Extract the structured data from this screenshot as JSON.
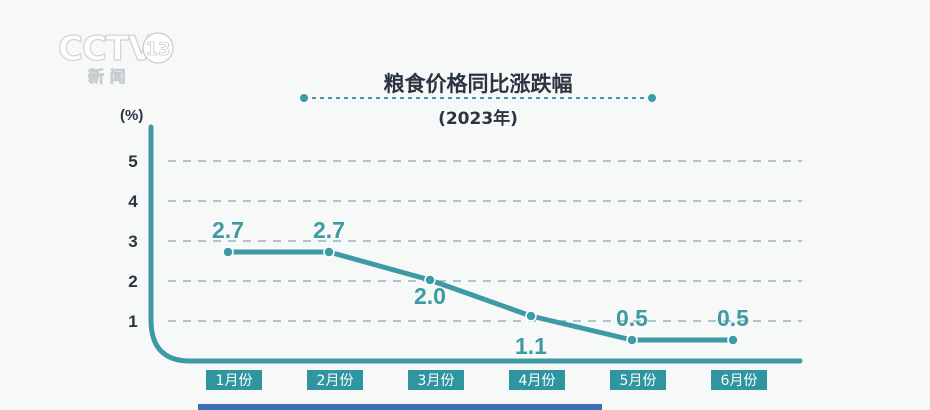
{
  "logo": {
    "main": "CCTV",
    "number": "13",
    "sub": "新 闻"
  },
  "chart_data": {
    "type": "line",
    "title": "粮食价格同比涨跌幅",
    "subtitle": "(2023年)",
    "ylabel": "(%)",
    "ylim": [
      0,
      5
    ],
    "yticks": [
      "1",
      "2",
      "3",
      "4",
      "5"
    ],
    "grid": true,
    "categories": [
      "1月份",
      "2月份",
      "3月份",
      "4月份",
      "5月份",
      "6月份"
    ],
    "values": [
      2.7,
      2.7,
      2.0,
      1.1,
      0.5,
      0.5
    ],
    "data_labels": [
      "2.7",
      "2.7",
      "2.0",
      "1.1",
      "0.5",
      "0.5"
    ]
  },
  "colors": {
    "line": "#3e9aa4",
    "axis": "#3e9aa4",
    "label_box": "#2e95a1",
    "grid": "#7fa9b3",
    "title": "#2b3441",
    "bottom_strip": "#3d6fb8"
  }
}
